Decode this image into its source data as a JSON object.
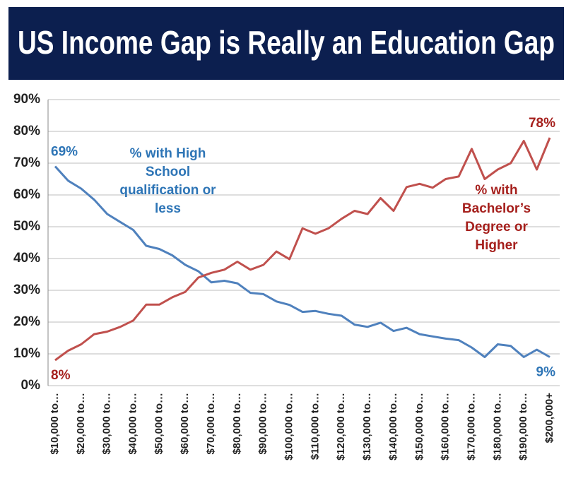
{
  "chart_data": {
    "type": "line",
    "title": "US Income Gap is Really an Education Gap",
    "categories": [
      "$10,000 to…",
      null,
      "$20,000 to…",
      null,
      "$30,000 to…",
      null,
      "$40,000 to…",
      null,
      "$50,000 to…",
      null,
      "$60,000 to…",
      null,
      "$70,000 to…",
      null,
      "$80,000 to…",
      null,
      "$90,000 to…",
      null,
      "$100,000 to…",
      null,
      "$110,000 to…",
      null,
      "$120,000 to…",
      null,
      "$130,000 to…",
      null,
      "$140,000 to…",
      null,
      "$150,000 to…",
      null,
      "$160,000 to…",
      null,
      "$170,000 to…",
      null,
      "$180,000 to…",
      null,
      "$190,000 to…",
      null,
      "$200,000+"
    ],
    "series": [
      {
        "name": "% with High School qualification or less",
        "color": "#4f81bd",
        "label_color": "#2e75b6",
        "start_label": "69%",
        "end_label": "9%",
        "values": [
          69,
          64.5,
          62,
          58.5,
          54,
          51.5,
          49,
          44,
          43,
          41,
          38,
          36,
          32.5,
          33,
          32.2,
          29.2,
          28.8,
          26.5,
          25.4,
          23.2,
          23.5,
          22.6,
          22,
          19.2,
          18.5,
          19.8,
          17.2,
          18.2,
          16.2,
          15.5,
          14.8,
          14.3,
          12,
          9,
          13,
          12.5,
          9,
          11.3,
          9
        ]
      },
      {
        "name": "% with Bachelor’s Degree or Higher",
        "color": "#c0504d",
        "label_color": "#a51f1c",
        "start_label": "8%",
        "end_label": "78%",
        "values": [
          8,
          11,
          13,
          16.2,
          17,
          18.5,
          20.5,
          25.5,
          25.5,
          27.8,
          29.5,
          34,
          35.5,
          36.5,
          39,
          36.5,
          38,
          42.2,
          39.8,
          49.5,
          47.8,
          49.5,
          52.5,
          55,
          54,
          59,
          55,
          62.5,
          63.5,
          62.3,
          65,
          65.8,
          74.5,
          65,
          68,
          70,
          77,
          68,
          78
        ]
      }
    ],
    "ylim": [
      0,
      90
    ],
    "yticks": [
      {
        "value": 0,
        "label": "0%"
      },
      {
        "value": 10,
        "label": "10%"
      },
      {
        "value": 20,
        "label": "20%"
      },
      {
        "value": 30,
        "label": "30%"
      },
      {
        "value": 40,
        "label": "40%"
      },
      {
        "value": 50,
        "label": "50%"
      },
      {
        "value": 60,
        "label": "60%"
      },
      {
        "value": 70,
        "label": "70%"
      },
      {
        "value": 80,
        "label": "80%"
      },
      {
        "value": 90,
        "label": "90%"
      }
    ],
    "grid": true
  }
}
